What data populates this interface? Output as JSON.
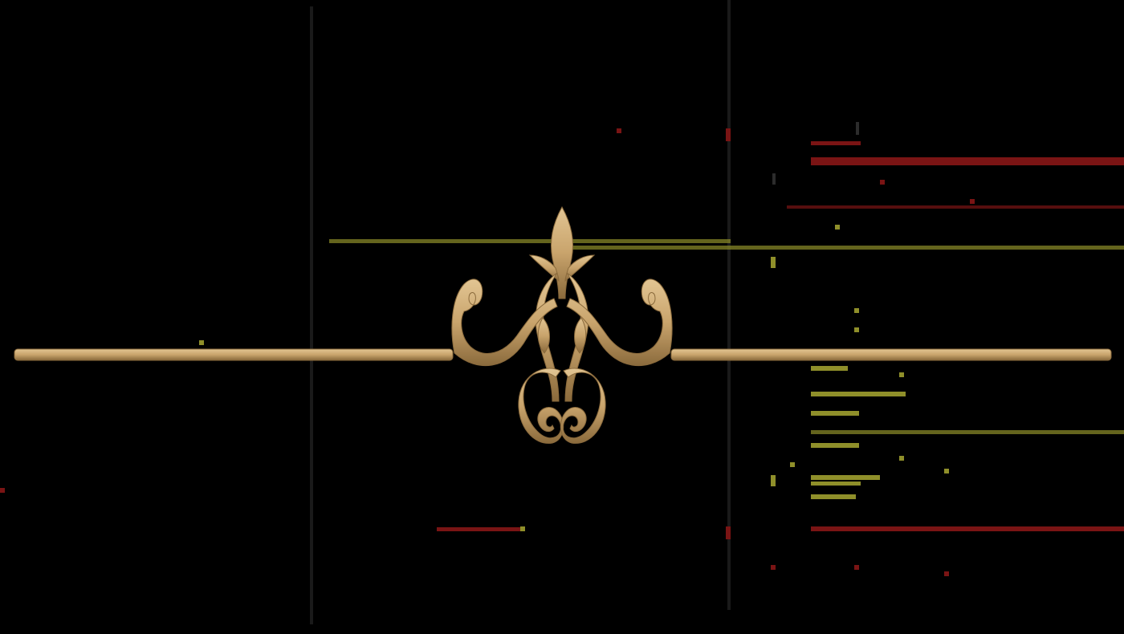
{
  "background_color": "#000000",
  "ornament": {
    "icon": "flourish-divider-icon",
    "gold_color": "#c9a46c",
    "gold_highlight": "#e2c593",
    "gold_shadow": "#8a6a3c"
  },
  "artifacts": {
    "red_color": "#7a1414",
    "olive_color": "#8f8f2a",
    "gray_color": "#4a4a4a"
  }
}
